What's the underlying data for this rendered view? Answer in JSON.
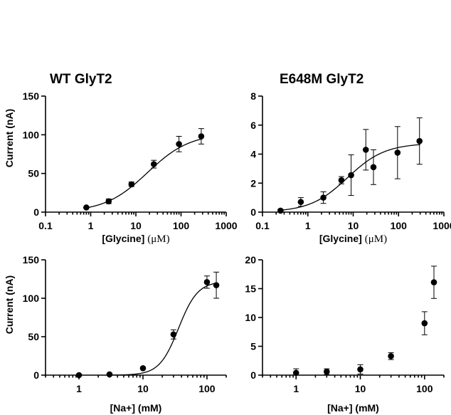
{
  "chart_data": [
    {
      "id": "wt-glycine",
      "type": "scatter",
      "title": "WT GlyT2",
      "xlabel": "[Glycine]",
      "xunit": "(μM)",
      "ylabel": "Current (nA)",
      "xscale": "log",
      "xlim": [
        0.1,
        1000
      ],
      "xticks": [
        "0.1",
        "1",
        "10",
        "100",
        "1000"
      ],
      "xtick_values": [
        0.1,
        1,
        10,
        100,
        1000
      ],
      "ylim": [
        0,
        150
      ],
      "yticks": [
        0,
        50,
        100,
        150
      ],
      "fit_curve": true,
      "series": [
        {
          "x": [
            0.8,
            2.5,
            8,
            25,
            90,
            280
          ],
          "y": [
            6,
            14,
            36,
            62,
            88,
            98
          ],
          "err": [
            1,
            3,
            3,
            5,
            10,
            10
          ]
        }
      ]
    },
    {
      "id": "e648m-glycine",
      "type": "scatter",
      "title": "E648M GlyT2",
      "xlabel": "[Glycine]",
      "xunit": "(μM)",
      "ylabel": "",
      "xscale": "log",
      "xlim": [
        0.1,
        1000
      ],
      "xticks": [
        "0.1",
        "1",
        "10",
        "100",
        "1000"
      ],
      "xtick_values": [
        0.1,
        1,
        10,
        100,
        1000
      ],
      "ylim": [
        0,
        8
      ],
      "yticks": [
        0,
        2,
        4,
        6,
        8
      ],
      "fit_curve": true,
      "series": [
        {
          "x": [
            0.25,
            0.7,
            2.2,
            5.5,
            9,
            19,
            28,
            95,
            290
          ],
          "y": [
            0.1,
            0.7,
            1.0,
            2.2,
            2.55,
            4.3,
            3.1,
            4.1,
            4.9
          ],
          "err": [
            0.1,
            0.3,
            0.4,
            0.25,
            1.4,
            1.4,
            1.2,
            1.8,
            1.6
          ]
        }
      ]
    },
    {
      "id": "wt-sodium",
      "type": "scatter",
      "title": "",
      "xlabel": "[Na+] (mM)",
      "xunit": "",
      "ylabel": "Current (nA)",
      "xscale": "log",
      "xlim": [
        0.3,
        200
      ],
      "xticks": [
        "1",
        "10",
        "100"
      ],
      "xtick_values": [
        1,
        10,
        100
      ],
      "ylim": [
        0,
        150
      ],
      "yticks": [
        0,
        50,
        100,
        150
      ],
      "fit_curve": true,
      "series": [
        {
          "x": [
            1,
            3,
            10,
            30,
            100,
            140
          ],
          "y": [
            0,
            1,
            9,
            53,
            121,
            117
          ],
          "err": [
            0,
            0,
            1,
            6,
            8,
            17
          ]
        }
      ]
    },
    {
      "id": "e648m-sodium",
      "type": "scatter",
      "title": "",
      "xlabel": "[Na+] (mM)",
      "xunit": "",
      "ylabel": "",
      "xscale": "log",
      "xlim": [
        0.3,
        200
      ],
      "xticks": [
        "1",
        "10",
        "100"
      ],
      "xtick_values": [
        1,
        10,
        100
      ],
      "ylim": [
        0,
        20
      ],
      "yticks": [
        0,
        5,
        10,
        15,
        20
      ],
      "fit_curve": false,
      "series": [
        {
          "x": [
            1,
            3,
            10,
            30,
            100,
            140
          ],
          "y": [
            0.4,
            0.6,
            1.0,
            3.3,
            9.0,
            16.1
          ],
          "err": [
            0.7,
            0.5,
            0.8,
            0.6,
            2.0,
            2.8
          ]
        }
      ]
    }
  ]
}
